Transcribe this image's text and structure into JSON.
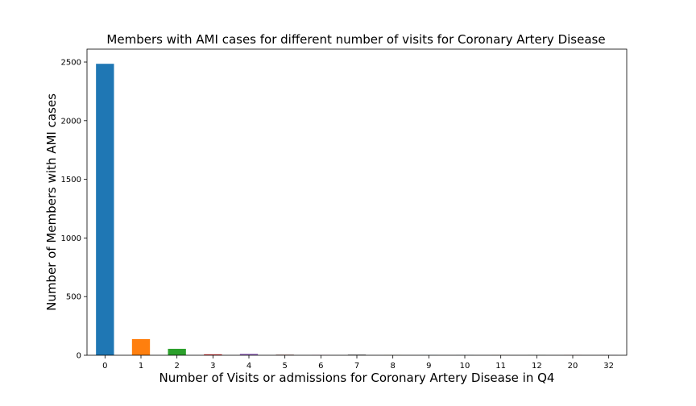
{
  "chart_data": {
    "type": "bar",
    "title": "Members with AMI cases for different number of visits for Coronary Artery Disease",
    "xlabel": "Number of Visits or admissions for Coronary Artery Disease in Q4",
    "ylabel": "Number of Members with AMI cases",
    "categories": [
      "0",
      "1",
      "2",
      "3",
      "4",
      "5",
      "6",
      "7",
      "8",
      "9",
      "10",
      "11",
      "12",
      "20",
      "32"
    ],
    "values": [
      2485,
      138,
      55,
      8,
      12,
      5,
      2,
      6,
      1,
      1,
      1,
      1,
      1,
      1,
      1
    ],
    "ylim": [
      0,
      2610
    ],
    "yticks": [
      0,
      500,
      1000,
      1500,
      2000,
      2500
    ],
    "grid": false,
    "legend": "none",
    "colors": [
      "#1f77b4",
      "#ff7f0e",
      "#2ca02c",
      "#d62728",
      "#9467bd",
      "#8c564b",
      "#e377c2",
      "#7f7f7f",
      "#bcbd22",
      "#17becf",
      "#1f77b4",
      "#ff7f0e",
      "#2ca02c",
      "#d62728",
      "#9467bd"
    ]
  }
}
